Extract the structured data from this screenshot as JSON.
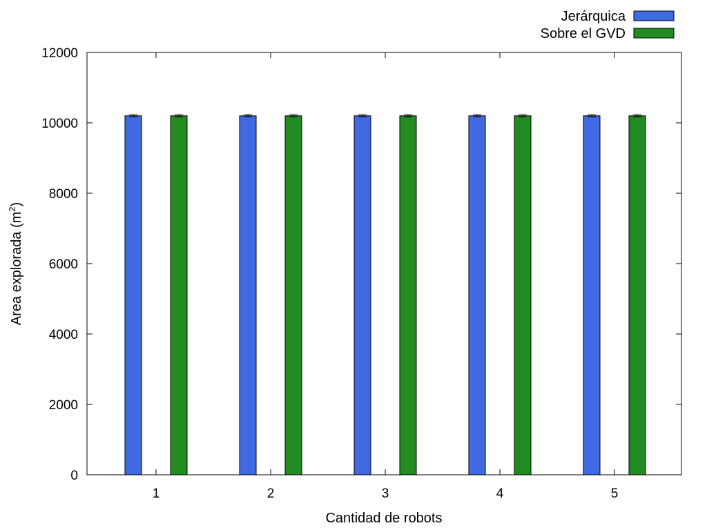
{
  "chart_data": {
    "type": "bar",
    "categories": [
      "1",
      "2",
      "3",
      "4",
      "5"
    ],
    "series": [
      {
        "name": "Jerárquica",
        "color": "#4169e1",
        "values": [
          10200,
          10200,
          10200,
          10200,
          10200
        ],
        "error": [
          30,
          30,
          30,
          30,
          30
        ]
      },
      {
        "name": "Sobre el GVD",
        "color": "#228b22",
        "values": [
          10200,
          10200,
          10200,
          10200,
          10200
        ],
        "error": [
          30,
          30,
          30,
          30,
          30
        ]
      }
    ],
    "xlabel": "Cantidad de robots",
    "ylabel": "Area explorada (m",
    "ylabel_superscript": "2",
    "ylabel_suffix": ")",
    "ylim": [
      0,
      12000
    ],
    "yticks": [
      "0",
      "2000",
      "4000",
      "6000",
      "8000",
      "10000",
      "12000"
    ],
    "legend_position": "top-right",
    "grid": false
  }
}
